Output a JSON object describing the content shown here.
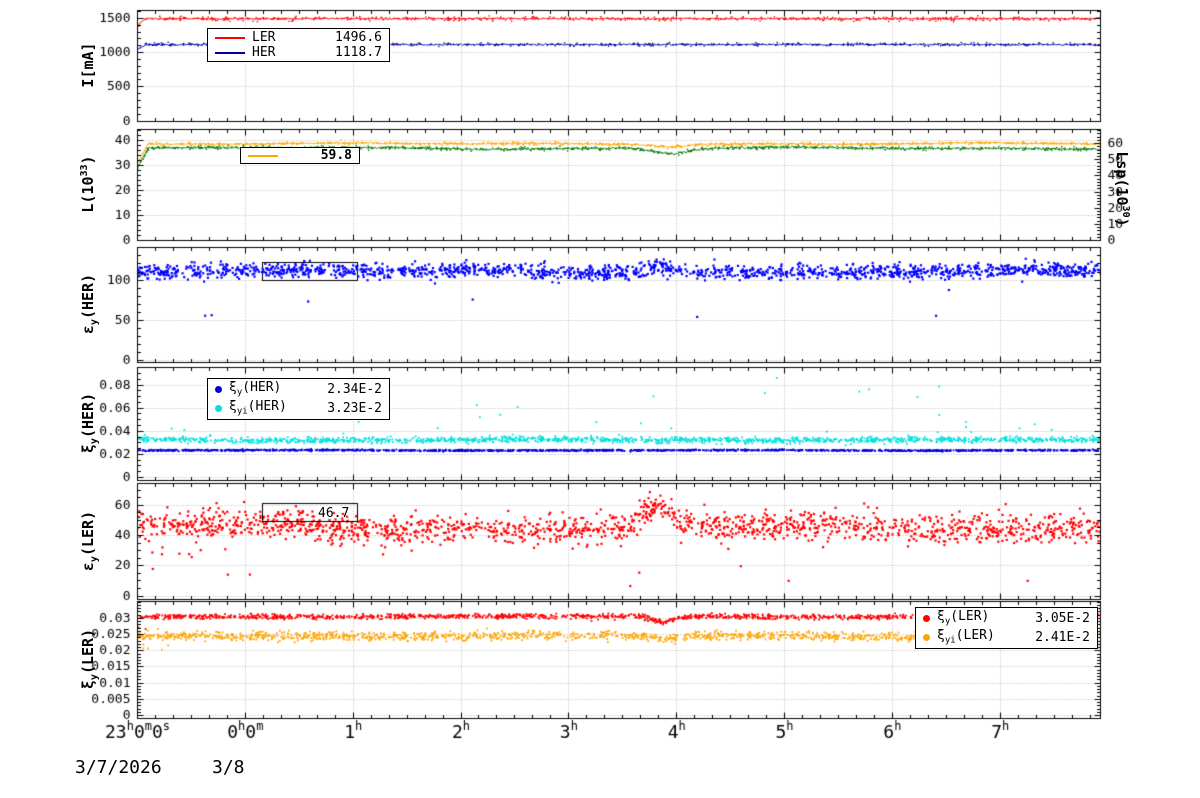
{
  "date_labels": {
    "left": "3/7/2026",
    "right": "3/8"
  },
  "x_axis": {
    "ticks": [
      {
        "h": 0,
        "parts": [
          [
            "23",
            "h"
          ],
          [
            "0",
            "m"
          ],
          [
            "0",
            "s"
          ]
        ]
      },
      {
        "h": 1,
        "parts": [
          [
            "0",
            "h"
          ],
          [
            "0",
            "m"
          ]
        ]
      },
      {
        "h": 2,
        "parts": [
          [
            "1",
            "h"
          ]
        ]
      },
      {
        "h": 3,
        "parts": [
          [
            "2",
            "h"
          ]
        ]
      },
      {
        "h": 4,
        "parts": [
          [
            "3",
            "h"
          ]
        ]
      },
      {
        "h": 5,
        "parts": [
          [
            "4",
            "h"
          ]
        ]
      },
      {
        "h": 6,
        "parts": [
          [
            "5",
            "h"
          ]
        ]
      },
      {
        "h": 7,
        "parts": [
          [
            "6",
            "h"
          ]
        ]
      },
      {
        "h": 8,
        "parts": [
          [
            "7",
            "h"
          ]
        ]
      }
    ],
    "span_hours": 8.93
  },
  "chart_data": [
    {
      "type": "line",
      "panel": "beam-current",
      "axis_title": {
        "pre": "I[mA]"
      },
      "ylim": [
        0,
        1617
      ],
      "yticks": [
        {
          "v": 0,
          "label": "0"
        },
        {
          "v": 500,
          "label": "500"
        },
        {
          "v": 1000,
          "label": "1000"
        },
        {
          "v": 1500,
          "label": "1500"
        }
      ],
      "minor": 100,
      "series": [
        {
          "name": "LER",
          "color": "#ff0000",
          "base": 1496.6,
          "start": 1390,
          "ramp": 0.07,
          "jitter": 6,
          "speckle": {
            "n": 500,
            "spread": 16
          }
        },
        {
          "name": "HER",
          "color": "#000099",
          "base": 1118.7,
          "start": 1045,
          "ramp": 0.07,
          "jitter": 6,
          "speckle": {
            "n": 420,
            "spread": 13
          }
        }
      ],
      "legend": {
        "rows": [
          {
            "label": "LER",
            "value": "1496.6"
          },
          {
            "label": "HER",
            "value": "1118.7"
          }
        ]
      }
    },
    {
      "type": "line",
      "panel": "luminosity",
      "axis_title": {
        "pre": "L(10",
        "sup": "33",
        "post": ")"
      },
      "right_axis_title": {
        "pre": "Lsp(10",
        "sup": "30",
        "post": ")"
      },
      "ylim": [
        0,
        44.6
      ],
      "yticks": [
        {
          "v": 0,
          "label": "0"
        },
        {
          "v": 10,
          "label": "10"
        },
        {
          "v": 20,
          "label": "20"
        },
        {
          "v": 30,
          "label": "30"
        },
        {
          "v": 40,
          "label": "40"
        }
      ],
      "minor": 2,
      "right_ylim": [
        0,
        69
      ],
      "yticks_right": [
        {
          "v": 0,
          "label": "0"
        },
        {
          "v": 10,
          "label": "10"
        },
        {
          "v": 20,
          "label": "20"
        },
        {
          "v": 30,
          "label": "30"
        },
        {
          "v": 40,
          "label": "40"
        },
        {
          "v": 50,
          "label": "50"
        },
        {
          "v": 60,
          "label": "60"
        }
      ],
      "minor_right": 2,
      "series": [
        {
          "name": "L",
          "color": "#ffa500",
          "base": 38.7,
          "start": 31,
          "ramp": 0.1,
          "jitter": 0.16,
          "wander": 0.35,
          "features": [
            {
              "x": 4.93,
              "w": 0.12,
              "amp": -1.0
            }
          ],
          "speckle": {
            "n": 600,
            "spread": 0.3
          }
        },
        {
          "name": "Lsp",
          "color": "#007700",
          "base": 36.9,
          "start": 29,
          "ramp": 0.1,
          "jitter": 0.2,
          "wander": 0.45,
          "features": [
            {
              "x": 4.95,
              "w": 0.15,
              "amp": -2.0
            }
          ],
          "speckle": {
            "n": 600,
            "spread": 0.35
          }
        }
      ],
      "legend": {
        "rows": [
          {
            "value": "59.8"
          }
        ]
      }
    },
    {
      "type": "scatter",
      "panel": "vertical-emittance-her",
      "axis_title": {
        "pre": "ε",
        "sub": "y",
        "post": "(HER)"
      },
      "ylim": [
        -3,
        140.6
      ],
      "yticks": [
        {
          "v": 0,
          "label": "0"
        },
        {
          "v": 50,
          "label": "50"
        },
        {
          "v": 100,
          "label": "100"
        }
      ],
      "minor": 10,
      "series": [
        {
          "name": "ey(HER)",
          "color": "#0000ff",
          "base": 110.5,
          "sigma": 4.6,
          "wander": 2.2,
          "n": 1600,
          "size": 2.2,
          "features": [
            {
              "x": 4.82,
              "w": 0.1,
              "amp": 8
            }
          ],
          "outliers": [
            {
              "n": 7,
              "lo": 52,
              "hi": 90
            }
          ]
        }
      ]
    },
    {
      "type": "scatter",
      "panel": "beam-beam-her",
      "axis_title": {
        "pre": "ξ",
        "sub": "y",
        "post": "(HER)"
      },
      "ylim": [
        -0.0026,
        0.0956
      ],
      "yticks": [
        {
          "v": 0,
          "label": "0"
        },
        {
          "v": 0.02,
          "label": "0.02"
        },
        {
          "v": 0.04,
          "label": "0.04"
        },
        {
          "v": 0.06,
          "label": "0.06"
        },
        {
          "v": 0.08,
          "label": "0.08"
        }
      ],
      "minor": 0.005,
      "series": [
        {
          "name": "xy_i(HER)",
          "color": "#00e0e0",
          "base": 0.0325,
          "sigma": 0.0013,
          "wander": 0.0006,
          "n": 1500,
          "size": 1.8,
          "outliers": [
            {
              "n": 22,
              "lo": 0.042,
              "hi": 0.088
            },
            {
              "n": 8,
              "lo": 0.038,
              "hi": 0.044
            }
          ]
        },
        {
          "name": "xy(HER)",
          "color": "#0000dd",
          "base": 0.0235,
          "sigma": 0.00032,
          "wander": 0.00025,
          "n": 1500,
          "size": 1.8
        }
      ],
      "legend": {
        "rows": [
          {
            "sym": "ξ",
            "sub": "y",
            "post": "(HER)",
            "value": "2.34E-2"
          },
          {
            "sym": "ξ",
            "sub": "yi",
            "post": "(HER)",
            "value": "3.23E-2"
          }
        ]
      }
    },
    {
      "type": "scatter",
      "panel": "vertical-emittance-ler",
      "axis_title": {
        "pre": "ε",
        "sub": "y",
        "post": "(LER)"
      },
      "ylim": [
        -2.3,
        74.4
      ],
      "yticks": [
        {
          "v": 0,
          "label": "0"
        },
        {
          "v": 20,
          "label": "20"
        },
        {
          "v": 40,
          "label": "40"
        },
        {
          "v": 60,
          "label": "60"
        }
      ],
      "minor": 5,
      "series": [
        {
          "name": "ey(LER)",
          "color": "#ff0000",
          "base": 45.5,
          "sigma": 4.8,
          "wander": 2.6,
          "n": 1600,
          "size": 2.2,
          "features": [
            {
              "x": 4.82,
              "w": 0.12,
              "amp": 12
            }
          ],
          "outliers": [
            {
              "n": 8,
              "lo": 5,
              "hi": 20
            },
            {
              "n": 6,
              "lo": 24,
              "hi": 33,
              "xmax": 0.6
            }
          ]
        }
      ],
      "legend": {
        "rows": [
          {
            "value": "46.7"
          }
        ]
      }
    },
    {
      "type": "scatter",
      "panel": "beam-beam-ler",
      "axis_title": {
        "pre": "ξ",
        "sub": "y",
        "post": "(LER)"
      },
      "ylim": [
        -0.0009,
        0.0352
      ],
      "yticks": [
        {
          "v": 0,
          "label": "0"
        },
        {
          "v": 0.005,
          "label": "0.005"
        },
        {
          "v": 0.01,
          "label": "0.01"
        },
        {
          "v": 0.015,
          "label": "0.015"
        },
        {
          "v": 0.02,
          "label": "0.02"
        },
        {
          "v": 0.025,
          "label": "0.025"
        },
        {
          "v": 0.03,
          "label": "0.03"
        }
      ],
      "minor": 0.001,
      "series": [
        {
          "name": "xy(LER)",
          "color": "#ff0000",
          "base": 0.0306,
          "sigma": 0.00038,
          "wander": 0.0002,
          "n": 1400,
          "size": 1.8,
          "features": [
            {
              "x": 4.88,
              "w": 0.1,
              "amp": -0.0018
            }
          ],
          "outliers": [
            {
              "n": 3,
              "lo": 0.024,
              "hi": 0.028,
              "xmax": 0.15
            }
          ]
        },
        {
          "name": "xy_i(LER)",
          "color": "#ffa500",
          "base": 0.0246,
          "sigma": 0.0007,
          "wander": 0.0003,
          "n": 1400,
          "size": 1.8,
          "features": [
            {
              "x": 4.88,
              "w": 0.1,
              "amp": -0.001
            }
          ],
          "outliers": [
            {
              "n": 5,
              "lo": 0.0195,
              "hi": 0.023,
              "xmax": 0.35
            }
          ]
        }
      ],
      "legend": {
        "rows": [
          {
            "sym": "ξ",
            "sub": "y",
            "post": "(LER)",
            "value": "3.05E-2"
          },
          {
            "sym": "ξ",
            "sub": "yi",
            "post": "(LER)",
            "value": "2.41E-2"
          }
        ]
      }
    }
  ]
}
